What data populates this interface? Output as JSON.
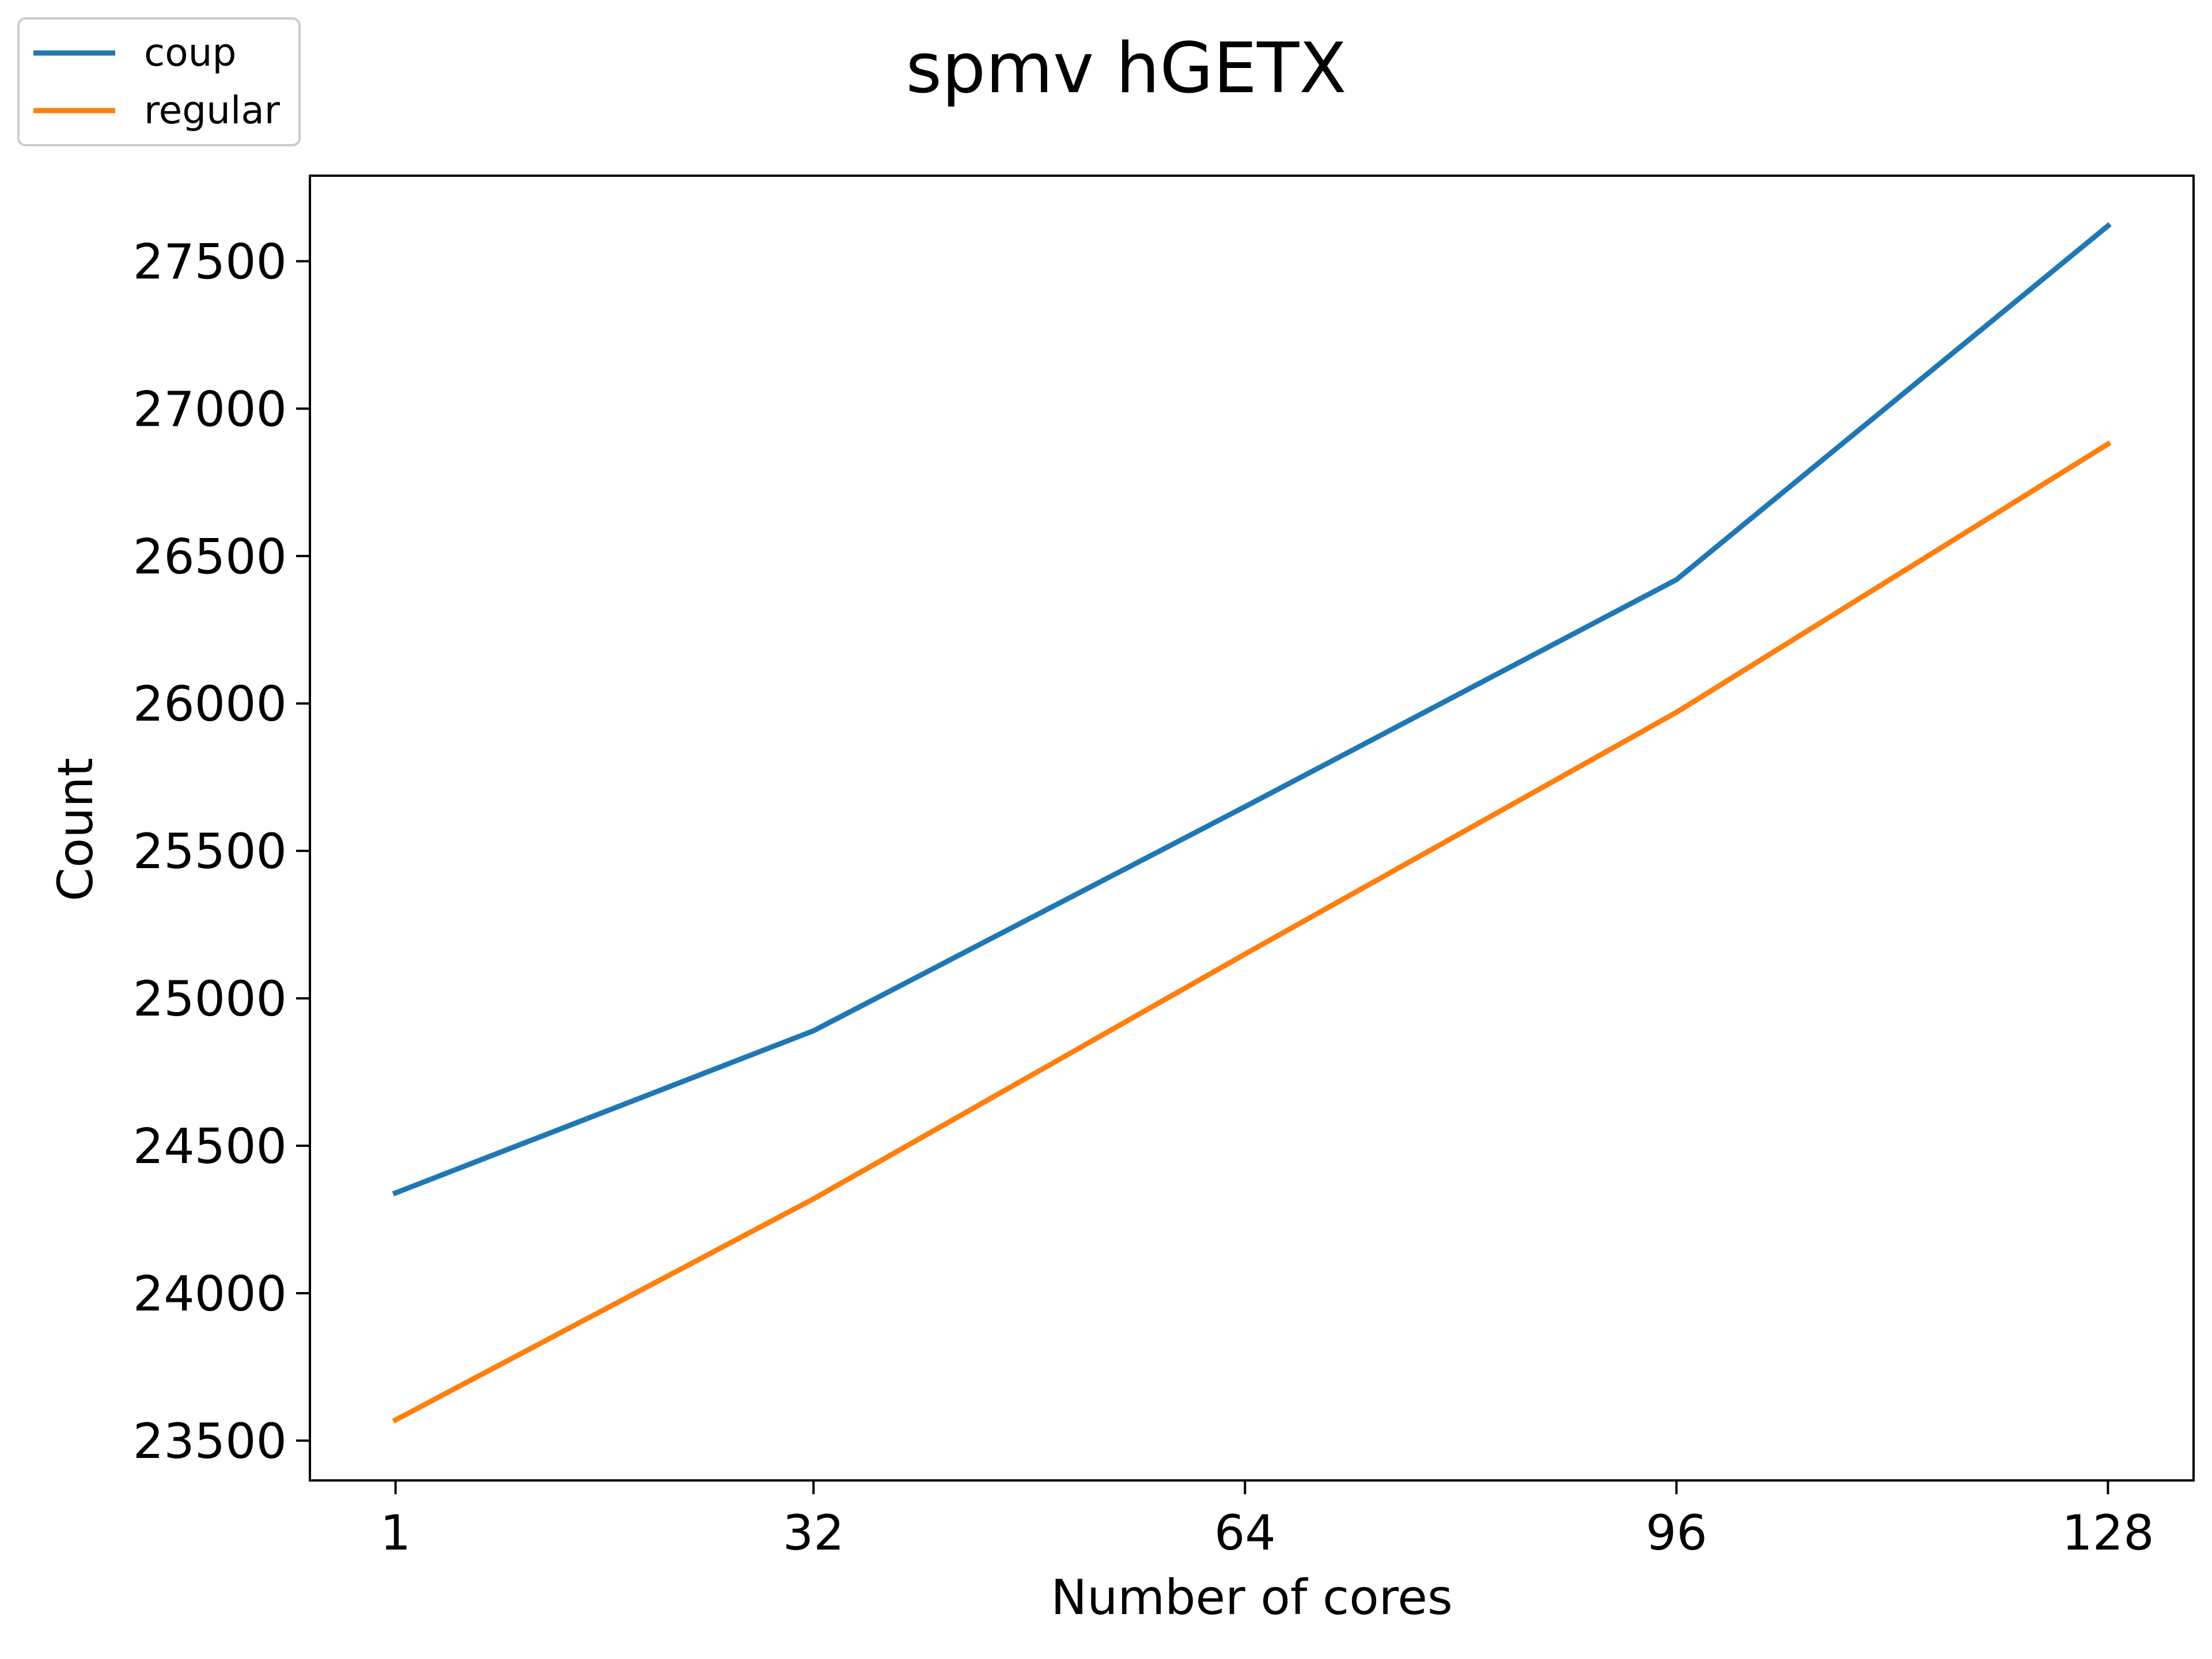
{
  "chart_data": {
    "type": "line",
    "title": "spmv hGETX",
    "xlabel": "Number of cores",
    "ylabel": "Count",
    "x": [
      1,
      32,
      64,
      96,
      128
    ],
    "x_ticks": [
      "1",
      "32",
      "64",
      "96",
      "128"
    ],
    "y_ticks": [
      "23500",
      "24000",
      "24500",
      "25000",
      "25500",
      "26000",
      "26500",
      "27000",
      "27500"
    ],
    "y_tick_values": [
      23500,
      24000,
      24500,
      25000,
      25500,
      26000,
      26500,
      27000,
      27500
    ],
    "xlim": [
      -5.35,
      134.35
    ],
    "ylim": [
      23365,
      27790
    ],
    "grid": false,
    "legend_placement": "top-left outside",
    "series": [
      {
        "name": "coup",
        "color": "#1f77b4",
        "values": [
          24340,
          24890,
          25650,
          26420,
          27620
        ]
      },
      {
        "name": "regular",
        "color": "#ff7f0e",
        "values": [
          23570,
          24320,
          25150,
          25970,
          26880
        ]
      }
    ]
  }
}
